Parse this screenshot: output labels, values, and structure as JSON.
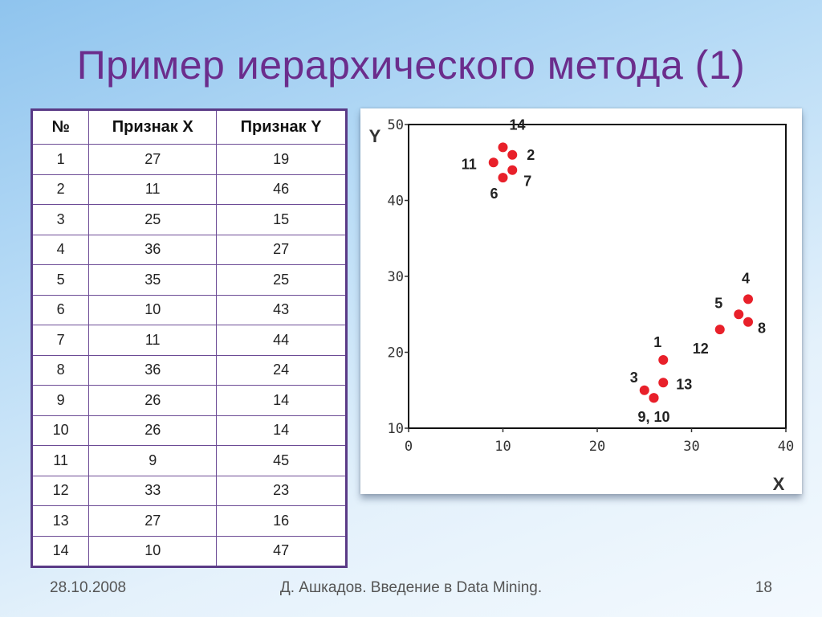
{
  "slide": {
    "title": "Пример иерархического метода (1)",
    "footer_date": "28.10.2008",
    "footer_author": "Д. Ашкадов. Введение в Data Mining.",
    "page_number": "18"
  },
  "table": {
    "headers": [
      "№",
      "Признак X",
      "Признак Y"
    ],
    "rows": [
      [
        "1",
        "27",
        "19"
      ],
      [
        "2",
        "11",
        "46"
      ],
      [
        "3",
        "25",
        "15"
      ],
      [
        "4",
        "36",
        "27"
      ],
      [
        "5",
        "35",
        "25"
      ],
      [
        "6",
        "10",
        "43"
      ],
      [
        "7",
        "11",
        "44"
      ],
      [
        "8",
        "36",
        "24"
      ],
      [
        "9",
        "26",
        "14"
      ],
      [
        "10",
        "26",
        "14"
      ],
      [
        "11",
        "9",
        "45"
      ],
      [
        "12",
        "33",
        "23"
      ],
      [
        "13",
        "27",
        "16"
      ],
      [
        "14",
        "10",
        "47"
      ]
    ]
  },
  "chart_data": {
    "type": "scatter",
    "title": "",
    "xlabel": "X",
    "ylabel": "Y",
    "xlim": [
      0,
      40
    ],
    "ylim": [
      10,
      50
    ],
    "x_ticks": [
      "0",
      "10",
      "20",
      "30",
      "40"
    ],
    "y_ticks": [
      "10",
      "20",
      "30",
      "40",
      "50"
    ],
    "grid": false,
    "point_color": "#e8202a",
    "points": [
      {
        "x": 27,
        "y": 19
      },
      {
        "x": 11,
        "y": 46
      },
      {
        "x": 25,
        "y": 15
      },
      {
        "x": 36,
        "y": 27
      },
      {
        "x": 35,
        "y": 25
      },
      {
        "x": 10,
        "y": 43
      },
      {
        "x": 11,
        "y": 44
      },
      {
        "x": 36,
        "y": 24
      },
      {
        "x": 26,
        "y": 14
      },
      {
        "x": 26,
        "y": 14
      },
      {
        "x": 9,
        "y": 45
      },
      {
        "x": 33,
        "y": 23
      },
      {
        "x": 27,
        "y": 16
      },
      {
        "x": 10,
        "y": 47
      }
    ],
    "point_labels": [
      {
        "text": "14",
        "x": 10,
        "y": 47
      },
      {
        "text": "11",
        "x": 9,
        "y": 45
      },
      {
        "text": "2",
        "x": 11,
        "y": 46
      },
      {
        "text": "7",
        "x": 11,
        "y": 44
      },
      {
        "text": "6",
        "x": 10,
        "y": 43
      },
      {
        "text": "4",
        "x": 36,
        "y": 27
      },
      {
        "text": "5",
        "x": 35,
        "y": 25
      },
      {
        "text": "8",
        "x": 36,
        "y": 24
      },
      {
        "text": "12",
        "x": 33,
        "y": 23
      },
      {
        "text": "1",
        "x": 27,
        "y": 19
      },
      {
        "text": "3",
        "x": 25,
        "y": 15
      },
      {
        "text": "13",
        "x": 27,
        "y": 16
      },
      {
        "text": "9, 10",
        "x": 26,
        "y": 14
      }
    ]
  }
}
